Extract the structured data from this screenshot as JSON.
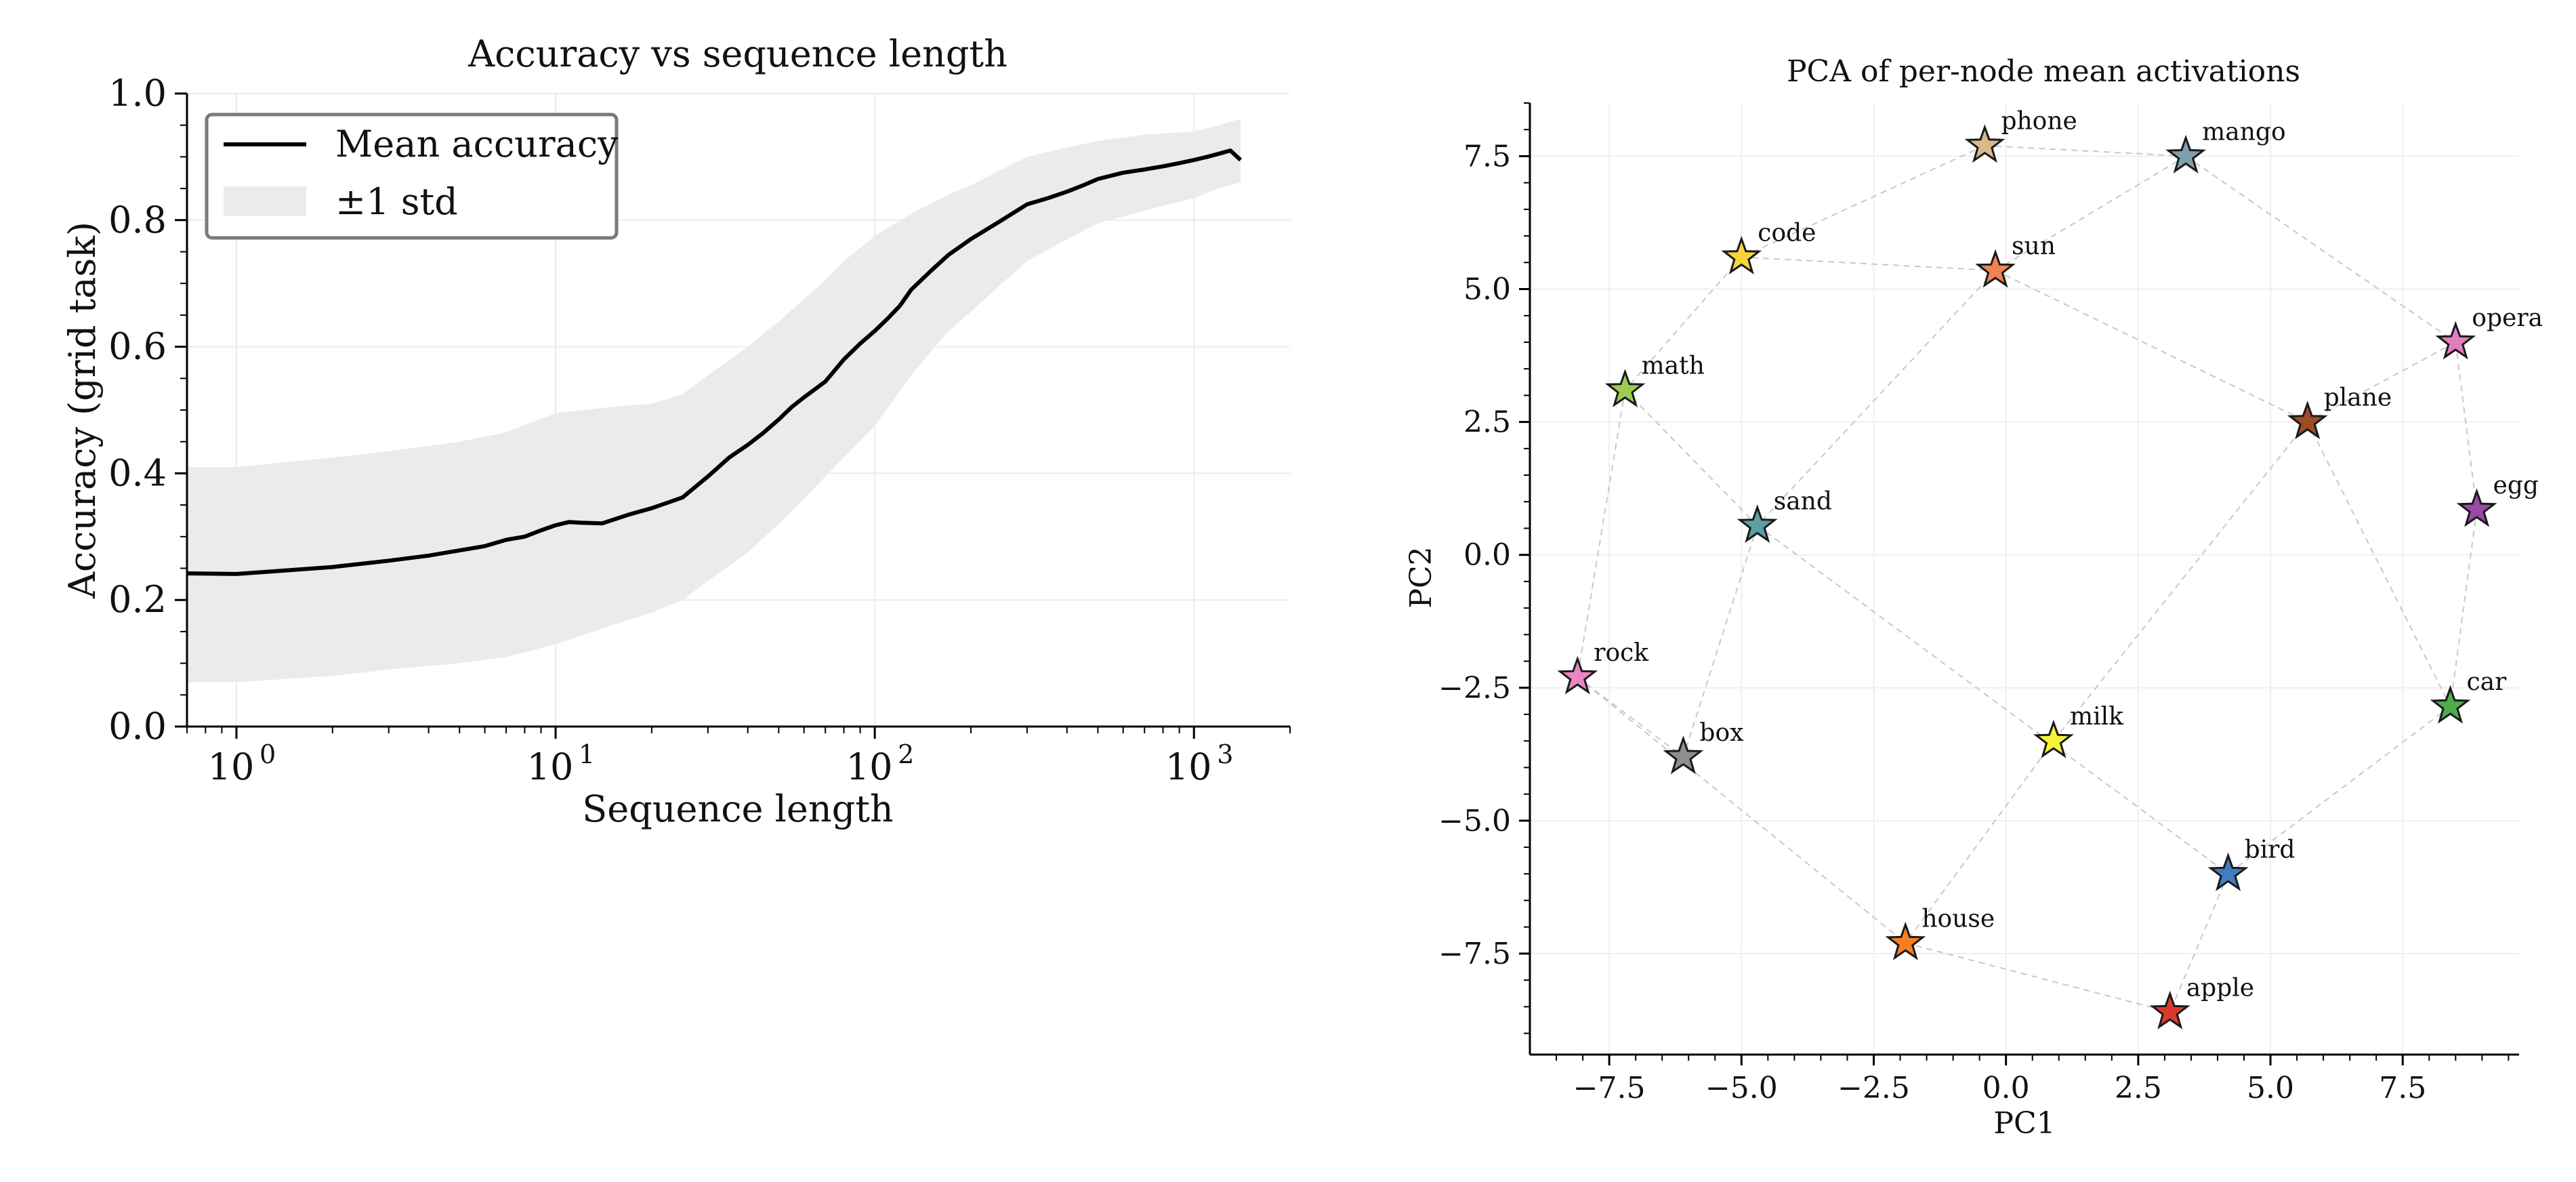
{
  "chart_data": [
    {
      "type": "line",
      "title": "Accuracy vs sequence length",
      "xlabel": "Sequence length",
      "ylabel": "Accuracy (grid task)",
      "xscale": "log",
      "xlim": [
        0.7,
        2000
      ],
      "ylim": [
        0.0,
        1.0
      ],
      "grid": true,
      "legend_position": "upper-left",
      "x_ticks": [
        {
          "value": 1,
          "label": "10",
          "exp": "0"
        },
        {
          "value": 10,
          "label": "10",
          "exp": "1"
        },
        {
          "value": 100,
          "label": "10",
          "exp": "2"
        },
        {
          "value": 1000,
          "label": "10",
          "exp": "3"
        }
      ],
      "y_ticks": [
        {
          "value": 0.0,
          "label": "0.0"
        },
        {
          "value": 0.2,
          "label": "0.2"
        },
        {
          "value": 0.4,
          "label": "0.4"
        },
        {
          "value": 0.6,
          "label": "0.6"
        },
        {
          "value": 0.8,
          "label": "0.8"
        },
        {
          "value": 1.0,
          "label": "1.0"
        }
      ],
      "legend": [
        {
          "label": "Mean accuracy",
          "kind": "line",
          "color": "#000000"
        },
        {
          "label": "±1 std",
          "kind": "band",
          "color": "#ebebeb"
        }
      ],
      "series": [
        {
          "name": "Mean accuracy",
          "x": [
            0.7,
            1,
            2,
            3,
            4,
            6,
            7,
            8,
            9,
            10,
            11,
            12,
            14,
            17,
            20,
            25,
            30,
            35,
            40,
            45,
            50,
            55,
            60,
            70,
            80,
            90,
            100,
            110,
            120,
            130,
            150,
            170,
            200,
            250,
            300,
            350,
            400,
            450,
            500,
            600,
            700,
            800,
            900,
            1000,
            1100,
            1200,
            1300,
            1400
          ],
          "y": [
            0.242,
            0.241,
            0.252,
            0.262,
            0.27,
            0.285,
            0.295,
            0.3,
            0.31,
            0.318,
            0.323,
            0.322,
            0.321,
            0.335,
            0.345,
            0.362,
            0.395,
            0.425,
            0.445,
            0.465,
            0.485,
            0.505,
            0.52,
            0.545,
            0.58,
            0.605,
            0.625,
            0.645,
            0.665,
            0.69,
            0.72,
            0.745,
            0.77,
            0.8,
            0.825,
            0.835,
            0.845,
            0.855,
            0.865,
            0.875,
            0.88,
            0.885,
            0.89,
            0.895,
            0.9,
            0.905,
            0.91,
            0.895
          ],
          "color": "#000000"
        },
        {
          "name": "±1 std",
          "x": [
            0.7,
            1,
            2,
            3,
            5,
            7,
            10,
            15,
            20,
            25,
            30,
            40,
            50,
            60,
            70,
            80,
            100,
            130,
            170,
            200,
            250,
            300,
            400,
            500,
            700,
            1000,
            1200,
            1400
          ],
          "upper": [
            0.41,
            0.41,
            0.425,
            0.435,
            0.45,
            0.465,
            0.495,
            0.505,
            0.51,
            0.525,
            0.555,
            0.6,
            0.64,
            0.675,
            0.705,
            0.735,
            0.775,
            0.81,
            0.84,
            0.855,
            0.88,
            0.9,
            0.915,
            0.925,
            0.935,
            0.94,
            0.95,
            0.96
          ],
          "lower": [
            0.07,
            0.07,
            0.08,
            0.09,
            0.1,
            0.11,
            0.13,
            0.16,
            0.18,
            0.2,
            0.23,
            0.275,
            0.32,
            0.36,
            0.395,
            0.425,
            0.475,
            0.555,
            0.625,
            0.655,
            0.7,
            0.735,
            0.77,
            0.795,
            0.815,
            0.835,
            0.85,
            0.86
          ],
          "color": "#ebebeb"
        }
      ]
    },
    {
      "type": "scatter",
      "title": "PCA of per-node mean activations",
      "xlabel": "PC1",
      "ylabel": "PC2",
      "xlim": [
        -9.0,
        9.7
      ],
      "ylim": [
        -9.4,
        8.5
      ],
      "grid": true,
      "marker": "star",
      "x_ticks": [
        {
          "value": -7.5,
          "label": "−7.5"
        },
        {
          "value": -5.0,
          "label": "−5.0"
        },
        {
          "value": -2.5,
          "label": "−2.5"
        },
        {
          "value": 0.0,
          "label": "0.0"
        },
        {
          "value": 2.5,
          "label": "2.5"
        },
        {
          "value": 5.0,
          "label": "5.0"
        },
        {
          "value": 7.5,
          "label": "7.5"
        }
      ],
      "y_ticks": [
        {
          "value": 7.5,
          "label": "7.5"
        },
        {
          "value": 5.0,
          "label": "5.0"
        },
        {
          "value": 2.5,
          "label": "2.5"
        },
        {
          "value": 0.0,
          "label": "0.0"
        },
        {
          "value": -2.5,
          "label": "−2.5"
        },
        {
          "value": -5.0,
          "label": "−5.0"
        },
        {
          "value": -7.5,
          "label": "−7.5"
        }
      ],
      "points": [
        {
          "label": "phone",
          "x": -0.4,
          "y": 7.7,
          "color": "#d9b98a"
        },
        {
          "label": "mango",
          "x": 3.4,
          "y": 7.5,
          "color": "#7d9fae"
        },
        {
          "label": "code",
          "x": -5.0,
          "y": 5.6,
          "color": "#f6d43a"
        },
        {
          "label": "sun",
          "x": -0.2,
          "y": 5.35,
          "color": "#ee8452"
        },
        {
          "label": "opera",
          "x": 8.5,
          "y": 4.0,
          "color": "#e27ec0"
        },
        {
          "label": "math",
          "x": -7.2,
          "y": 3.1,
          "color": "#9acd52"
        },
        {
          "label": "plane",
          "x": 5.7,
          "y": 2.5,
          "color": "#9c4d26"
        },
        {
          "label": "egg",
          "x": 8.9,
          "y": 0.85,
          "color": "#994aa3"
        },
        {
          "label": "sand",
          "x": -4.7,
          "y": 0.55,
          "color": "#5d9ea5"
        },
        {
          "label": "rock",
          "x": -8.1,
          "y": -2.3,
          "color": "#ec86c0"
        },
        {
          "label": "car",
          "x": 8.4,
          "y": -2.85,
          "color": "#4cad4a"
        },
        {
          "label": "milk",
          "x": 0.9,
          "y": -3.5,
          "color": "#f7f23a"
        },
        {
          "label": "box",
          "x": -6.1,
          "y": -3.8,
          "color": "#8e8e8e"
        },
        {
          "label": "bird",
          "x": 4.2,
          "y": -6.0,
          "color": "#3e7fbf"
        },
        {
          "label": "house",
          "x": -1.9,
          "y": -7.3,
          "color": "#f47f24"
        },
        {
          "label": "apple",
          "x": 3.1,
          "y": -8.6,
          "color": "#d93a2b"
        }
      ],
      "edges": [
        [
          "phone",
          "mango"
        ],
        [
          "phone",
          "code"
        ],
        [
          "code",
          "sun"
        ],
        [
          "sun",
          "mango"
        ],
        [
          "mango",
          "opera"
        ],
        [
          "opera",
          "plane"
        ],
        [
          "opera",
          "egg"
        ],
        [
          "egg",
          "car"
        ],
        [
          "sun",
          "plane"
        ],
        [
          "sun",
          "sand"
        ],
        [
          "code",
          "math"
        ],
        [
          "math",
          "rock"
        ],
        [
          "math",
          "sand"
        ],
        [
          "sand",
          "box"
        ],
        [
          "sand",
          "bird"
        ],
        [
          "rock",
          "box"
        ],
        [
          "rock",
          "house"
        ],
        [
          "plane",
          "milk"
        ],
        [
          "plane",
          "car"
        ],
        [
          "milk",
          "house"
        ],
        [
          "car",
          "bird"
        ],
        [
          "bird",
          "apple"
        ],
        [
          "house",
          "apple"
        ]
      ]
    }
  ]
}
